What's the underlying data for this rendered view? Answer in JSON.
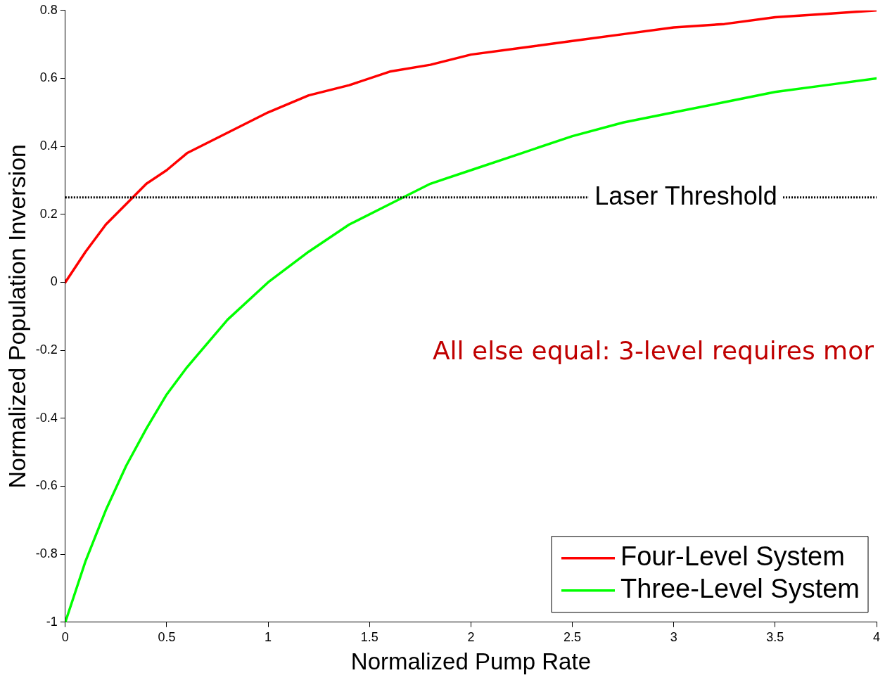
{
  "chart_data": {
    "type": "line",
    "xlabel": "Normalized Pump Rate",
    "ylabel": "Normalized Population Inversion",
    "x": [
      0,
      0.1,
      0.2,
      0.3,
      0.4,
      0.5,
      0.6,
      0.8,
      1,
      1.2,
      1.4,
      1.6,
      1.8,
      2,
      2.25,
      2.5,
      2.75,
      3,
      3.25,
      3.5,
      3.75,
      4
    ],
    "series": [
      {
        "name": "Four-Level System",
        "color": "#ff0000",
        "values": [
          0,
          0.09,
          0.17,
          0.23,
          0.29,
          0.33,
          0.38,
          0.44,
          0.5,
          0.55,
          0.58,
          0.62,
          0.64,
          0.67,
          0.69,
          0.71,
          0.73,
          0.75,
          0.76,
          0.78,
          0.79,
          0.8
        ]
      },
      {
        "name": "Three-Level System",
        "color": "#00ff00",
        "values": [
          -1,
          -0.82,
          -0.67,
          -0.54,
          -0.43,
          -0.33,
          -0.25,
          -0.11,
          0,
          0.09,
          0.17,
          0.23,
          0.29,
          0.33,
          0.38,
          0.43,
          0.47,
          0.5,
          0.53,
          0.56,
          0.58,
          0.6
        ]
      }
    ],
    "xlim": [
      0,
      4
    ],
    "xticks": [
      0,
      0.5,
      1,
      1.5,
      2,
      2.5,
      3,
      3.5,
      4
    ],
    "ylim": [
      -1,
      0.8
    ],
    "yticks": [
      -1,
      -0.8,
      -0.6,
      -0.4,
      -0.2,
      0,
      0.2,
      0.4,
      0.6,
      0.8
    ],
    "ref_lines": [
      {
        "axis": "y",
        "value": 0.25,
        "label": "Laser Threshold",
        "color": "#000000",
        "line_style": "dotted"
      }
    ],
    "annotations": [
      "All else equal: 3-level requires mor"
    ],
    "grid": false,
    "legend": "bottom right",
    "marker": "none",
    "line_style": "solid"
  }
}
